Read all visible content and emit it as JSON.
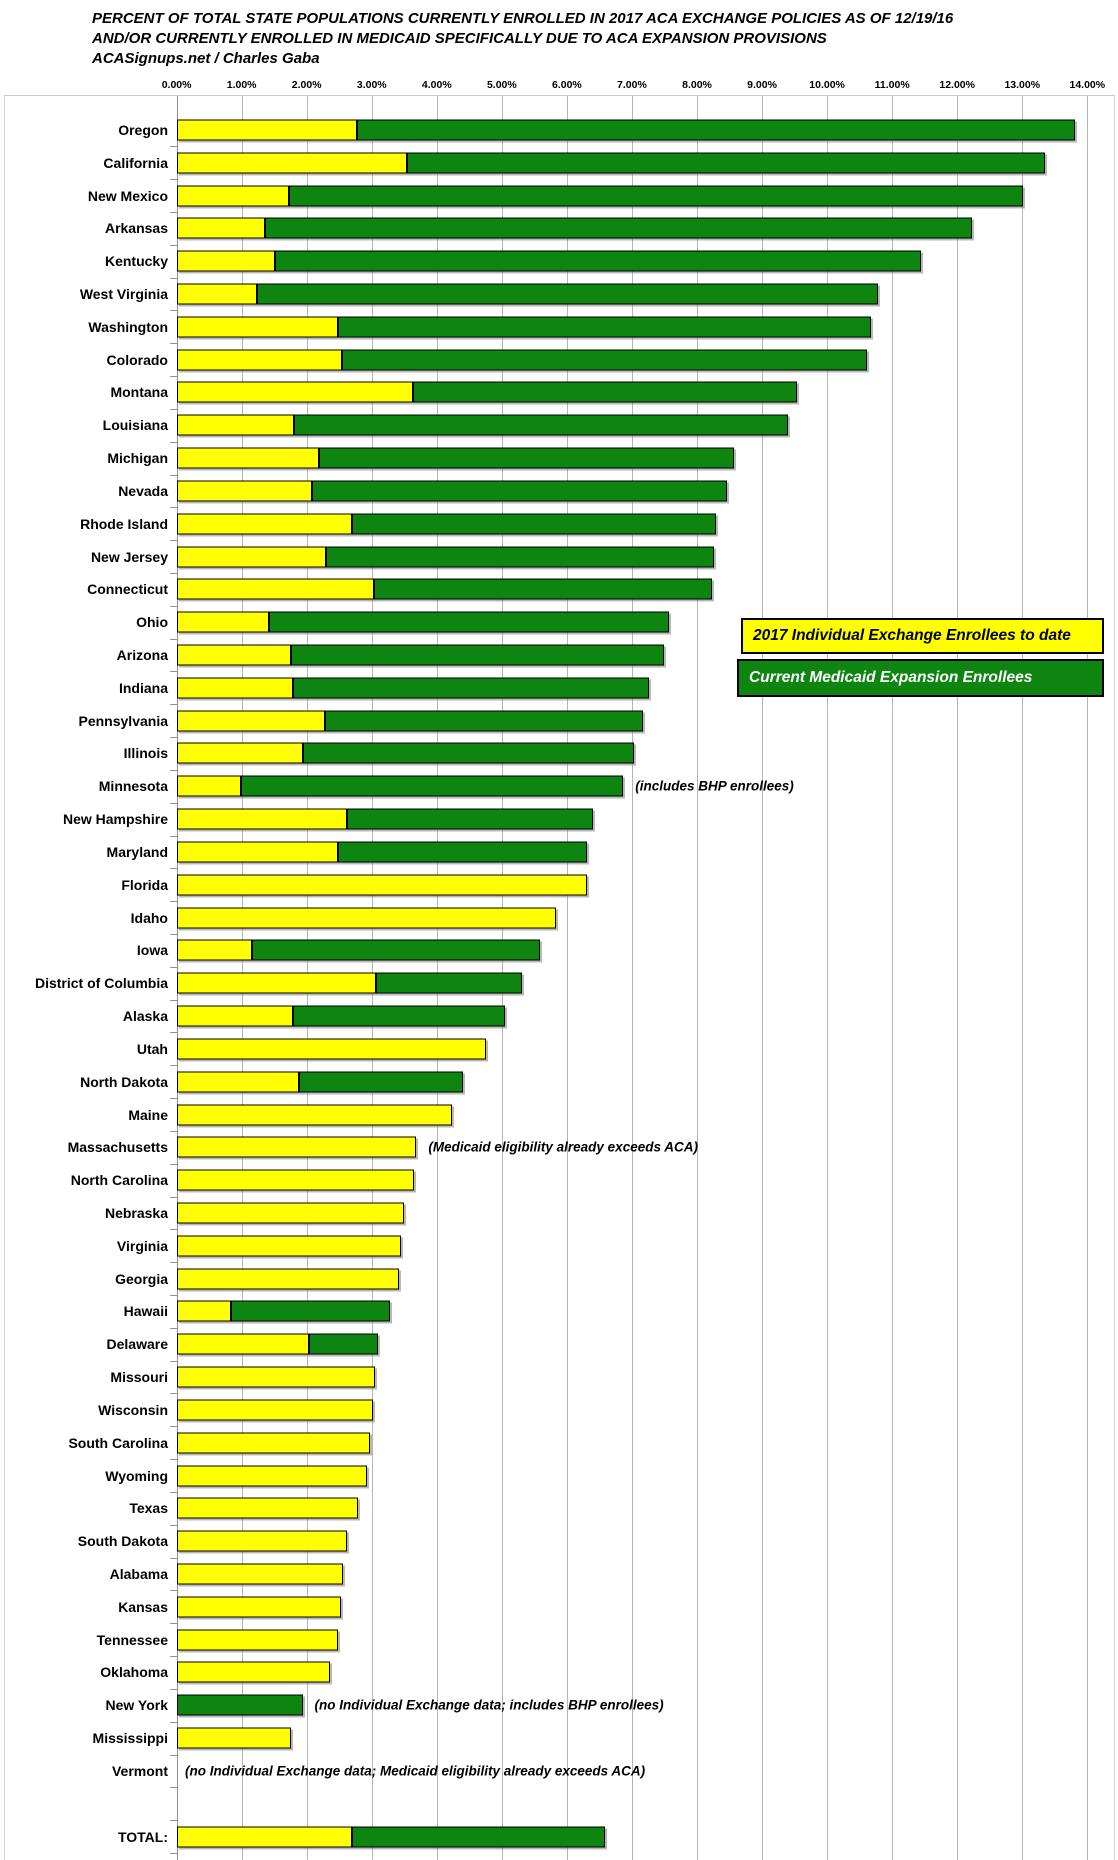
{
  "title": {
    "line1": "PERCENT OF TOTAL STATE POPULATIONS CURRENTLY ENROLLED IN 2017 ACA EXCHANGE POLICIES AS OF 12/19/16",
    "line2": "AND/OR CURRENTLY ENROLLED IN MEDICAID SPECIFICALLY DUE TO ACA EXPANSION PROVISIONS",
    "line3": "ACASignups.net / Charles Gaba"
  },
  "legend": {
    "exchange_label": "2017 Individual Exchange Enrollees to date",
    "medicaid_label": "Current Medicaid Expansion Enrollees",
    "exchange_color": "#ffff00",
    "medicaid_color": "#0e8510",
    "position": "middle-right overlay"
  },
  "chart_data": {
    "type": "bar",
    "orientation": "horizontal",
    "stacked": true,
    "grid": true,
    "series_names": [
      "2017 Individual Exchange Enrollees to date",
      "Current Medicaid Expansion Enrollees"
    ],
    "colors": {
      "exchange": "#ffff00",
      "medicaid": "#0e8510",
      "gridline": "#b5b5b5"
    },
    "x_axis": {
      "min": 0,
      "max": 14,
      "tick_step": 1,
      "unit": "percent",
      "tick_labels": [
        "0.00%",
        "1.00%",
        "2.00%",
        "3.00%",
        "4.00%",
        "5.00%",
        "6.00%",
        "7.00%",
        "8.00%",
        "9.00%",
        "10.00%",
        "11.00%",
        "12.00%",
        "13.00%",
        "14.00%"
      ]
    },
    "states": [
      {
        "name": "Oregon",
        "exchange": 2.77,
        "medicaid": 11.03
      },
      {
        "name": "California",
        "exchange": 3.54,
        "medicaid": 9.81
      },
      {
        "name": "New Mexico",
        "exchange": 1.72,
        "medicaid": 11.28
      },
      {
        "name": "Arkansas",
        "exchange": 1.36,
        "medicaid": 10.86
      },
      {
        "name": "Kentucky",
        "exchange": 1.5,
        "medicaid": 9.93
      },
      {
        "name": "West Virginia",
        "exchange": 1.23,
        "medicaid": 9.55
      },
      {
        "name": "Washington",
        "exchange": 2.48,
        "medicaid": 8.19
      },
      {
        "name": "Colorado",
        "exchange": 2.53,
        "medicaid": 8.07
      },
      {
        "name": "Montana",
        "exchange": 3.63,
        "medicaid": 5.9
      },
      {
        "name": "Louisiana",
        "exchange": 1.8,
        "medicaid": 7.6
      },
      {
        "name": "Michigan",
        "exchange": 2.18,
        "medicaid": 6.39
      },
      {
        "name": "Nevada",
        "exchange": 2.07,
        "medicaid": 6.39
      },
      {
        "name": "Rhode Island",
        "exchange": 2.69,
        "medicaid": 5.59
      },
      {
        "name": "New Jersey",
        "exchange": 2.29,
        "medicaid": 5.96
      },
      {
        "name": "Connecticut",
        "exchange": 3.03,
        "medicaid": 5.2
      },
      {
        "name": "Ohio",
        "exchange": 1.42,
        "medicaid": 6.15
      },
      {
        "name": "Arizona",
        "exchange": 1.76,
        "medicaid": 5.72
      },
      {
        "name": "Indiana",
        "exchange": 1.79,
        "medicaid": 5.47
      },
      {
        "name": "Pennsylvania",
        "exchange": 2.27,
        "medicaid": 4.9
      },
      {
        "name": "Illinois",
        "exchange": 1.93,
        "medicaid": 5.1
      },
      {
        "name": "Minnesota",
        "exchange": 0.99,
        "medicaid": 5.87,
        "annotation": "(includes BHP enrollees)"
      },
      {
        "name": "New Hampshire",
        "exchange": 2.62,
        "medicaid": 3.77
      },
      {
        "name": "Maryland",
        "exchange": 2.47,
        "medicaid": 3.84
      },
      {
        "name": "Florida",
        "exchange": 6.31,
        "medicaid": 0
      },
      {
        "name": "Idaho",
        "exchange": 5.82,
        "medicaid": 0
      },
      {
        "name": "Iowa",
        "exchange": 1.15,
        "medicaid": 4.43
      },
      {
        "name": "District of Columbia",
        "exchange": 3.06,
        "medicaid": 2.24
      },
      {
        "name": "Alaska",
        "exchange": 1.78,
        "medicaid": 3.27
      },
      {
        "name": "Utah",
        "exchange": 4.75,
        "medicaid": 0
      },
      {
        "name": "North Dakota",
        "exchange": 1.87,
        "medicaid": 2.52
      },
      {
        "name": "Maine",
        "exchange": 4.23,
        "medicaid": 0
      },
      {
        "name": "Massachusetts",
        "exchange": 3.68,
        "medicaid": 0,
        "annotation": "(Medicaid eligibility already exceeds ACA)"
      },
      {
        "name": "North Carolina",
        "exchange": 3.64,
        "medicaid": 0
      },
      {
        "name": "Nebraska",
        "exchange": 3.49,
        "medicaid": 0
      },
      {
        "name": "Virginia",
        "exchange": 3.44,
        "medicaid": 0
      },
      {
        "name": "Georgia",
        "exchange": 3.41,
        "medicaid": 0
      },
      {
        "name": "Hawaii",
        "exchange": 0.83,
        "medicaid": 2.45
      },
      {
        "name": "Delaware",
        "exchange": 2.03,
        "medicaid": 1.06
      },
      {
        "name": "Missouri",
        "exchange": 3.05,
        "medicaid": 0
      },
      {
        "name": "Wisconsin",
        "exchange": 3.01,
        "medicaid": 0
      },
      {
        "name": "South Carolina",
        "exchange": 2.97,
        "medicaid": 0
      },
      {
        "name": "Wyoming",
        "exchange": 2.92,
        "medicaid": 0
      },
      {
        "name": "Texas",
        "exchange": 2.78,
        "medicaid": 0
      },
      {
        "name": "South Dakota",
        "exchange": 2.62,
        "medicaid": 0
      },
      {
        "name": "Alabama",
        "exchange": 2.55,
        "medicaid": 0
      },
      {
        "name": "Kansas",
        "exchange": 2.52,
        "medicaid": 0
      },
      {
        "name": "Tennessee",
        "exchange": 2.47,
        "medicaid": 0
      },
      {
        "name": "Oklahoma",
        "exchange": 2.35,
        "medicaid": 0
      },
      {
        "name": "New York",
        "exchange": 0,
        "medicaid": 1.93,
        "annotation": "(no Individual Exchange data; includes BHP enrollees)"
      },
      {
        "name": "Mississippi",
        "exchange": 1.75,
        "medicaid": 0
      },
      {
        "name": "Vermont",
        "exchange": 0,
        "medicaid": 0,
        "annotation": "(no Individual Exchange data; Medicaid eligibility already exceeds ACA)"
      }
    ],
    "total": {
      "name": "TOTAL:",
      "exchange": 2.69,
      "medicaid": 3.89
    }
  }
}
